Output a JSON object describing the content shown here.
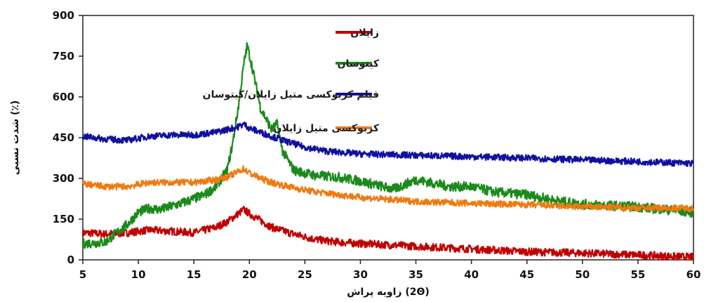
{
  "chart_data": {
    "type": "line",
    "xlabel": "زاویه پراش (2Θ)",
    "ylabel": "شدت نسبی (٪)",
    "xlim": [
      5,
      60
    ],
    "ylim": [
      0,
      900
    ],
    "xticks": [
      "5",
      "10",
      "15",
      "20",
      "25",
      "30",
      "35",
      "40",
      "45",
      "50",
      "55",
      "60"
    ],
    "yticks": [
      "0",
      "150",
      "300",
      "450",
      "600",
      "750",
      "900"
    ],
    "grid": false,
    "legend_position": "top-right",
    "series": [
      {
        "name": "زایلان",
        "color": "#c00000",
        "x": [
          5,
          7,
          9,
          11,
          13,
          15,
          17,
          18,
          19,
          19.5,
          20,
          21,
          22,
          24,
          26,
          28,
          30,
          35,
          40,
          45,
          50,
          55,
          60
        ],
        "y": [
          100,
          95,
          100,
          110,
          105,
          100,
          120,
          140,
          170,
          185,
          170,
          145,
          120,
          95,
          75,
          65,
          60,
          50,
          40,
          30,
          25,
          18,
          10
        ]
      },
      {
        "name": "کیتوسان",
        "color": "#1a8a1a",
        "x": [
          5,
          7,
          9,
          10,
          11,
          12,
          14,
          16,
          17,
          18,
          18.5,
          19,
          19.5,
          19.8,
          20.2,
          21,
          22,
          22.5,
          23,
          24,
          26,
          28,
          30,
          33,
          35,
          38,
          40,
          42,
          45,
          48,
          50,
          55,
          60
        ],
        "y": [
          60,
          65,
          130,
          175,
          190,
          185,
          210,
          240,
          270,
          330,
          430,
          560,
          720,
          790,
          720,
          560,
          480,
          500,
          400,
          330,
          310,
          305,
          290,
          260,
          295,
          270,
          270,
          250,
          240,
          215,
          205,
          195,
          175
        ]
      },
      {
        "name": "فیلم کربوکسی متیل زایلان/کیتوسان",
        "color": "#1010a0",
        "x": [
          5,
          7,
          9,
          11,
          13,
          15,
          17,
          18,
          19,
          19.5,
          20,
          21,
          22,
          23,
          25,
          27,
          30,
          35,
          40,
          45,
          50,
          55,
          60
        ],
        "y": [
          455,
          445,
          440,
          455,
          460,
          460,
          470,
          480,
          490,
          500,
          485,
          470,
          455,
          440,
          415,
          400,
          390,
          385,
          380,
          375,
          368,
          362,
          355
        ]
      },
      {
        "name": "کربوکسی متیل زایلان",
        "color": "#ee7a10",
        "x": [
          5,
          7,
          9,
          11,
          13,
          15,
          17,
          18,
          19,
          19.5,
          20,
          21,
          22,
          24,
          26,
          28,
          30,
          35,
          40,
          45,
          50,
          55,
          60
        ],
        "y": [
          280,
          270,
          270,
          285,
          285,
          285,
          295,
          305,
          325,
          335,
          320,
          300,
          285,
          265,
          250,
          240,
          230,
          215,
          208,
          203,
          195,
          192,
          190
        ]
      }
    ]
  }
}
